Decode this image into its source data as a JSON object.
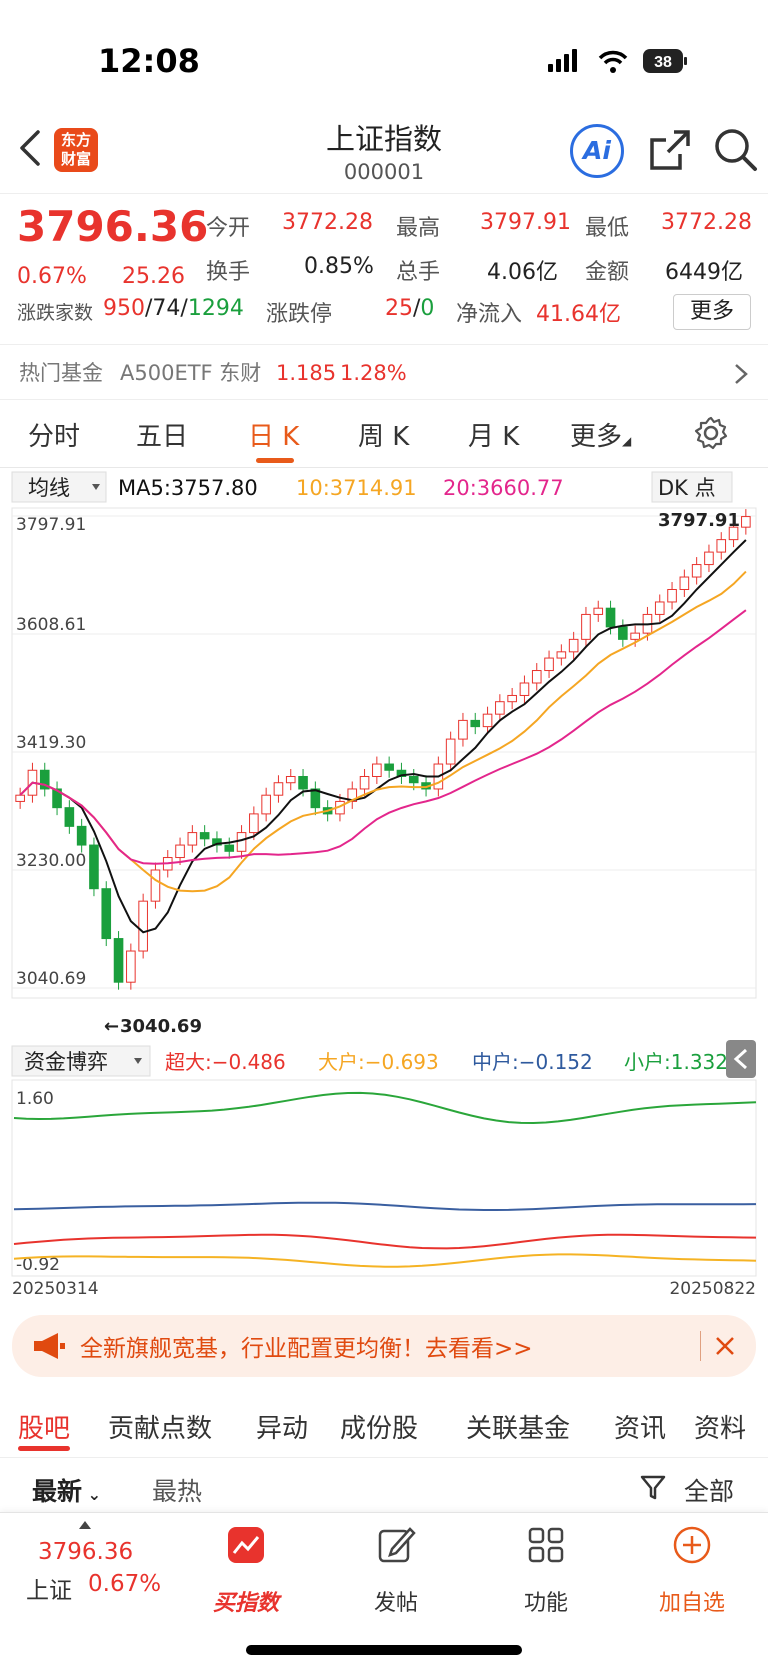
{
  "status": {
    "time": "12:08",
    "battery": "38"
  },
  "header": {
    "logo_line1": "东方",
    "logo_line2": "财富",
    "title": "上证指数",
    "code": "000001",
    "ai_label": "Ai"
  },
  "quote": {
    "price": "3796.36",
    "change_pct": "0.67%",
    "change": "25.26",
    "labels": {
      "open": "今开",
      "high": "最高",
      "low": "最低",
      "turnover": "换手",
      "volume": "总手",
      "amount": "金额",
      "breadth": "涨跌家数",
      "limit": "涨跌停",
      "netflow": "净流入"
    },
    "open": "3772.28",
    "high": "3797.91",
    "low": "3772.28",
    "turnover": "0.85%",
    "volume": "4.06亿",
    "amount": "6449亿",
    "up": "950",
    "flat": "74",
    "down": "1294",
    "limit_up": "25",
    "limit_down": "0",
    "netflow": "41.64亿",
    "more": "更多"
  },
  "hot_fund": {
    "label": "热门基金",
    "name": "A500ETF 东财",
    "price": "1.185",
    "pct": "1.28%"
  },
  "tabs": [
    "分时",
    "五日",
    "日 K",
    "周 K",
    "月 K",
    "更多"
  ],
  "active_tab": 2,
  "chart_header": {
    "ma_select": "均线",
    "ma5": "MA5:3757.80",
    "ma10": "10:3714.91",
    "ma20": "20:3660.77",
    "dk": "DK 点"
  },
  "colors": {
    "up": "#e8332d",
    "down": "#1a9f3d",
    "ma5": "#111111",
    "ma10": "#f5a623",
    "ma20": "#e3268c",
    "accent": "#e85a1a"
  },
  "chart_data": [
    {
      "type": "candlestick",
      "y_ticks": [
        "3797.91",
        "3608.61",
        "3419.30",
        "3230.00",
        "3040.69"
      ],
      "ylim": [
        3040.69,
        3797.91
      ],
      "max_label": "3797.91",
      "min_label": "3040.69",
      "close_path": [
        3350,
        3390,
        3360,
        3330,
        3300,
        3270,
        3200,
        3120,
        3050,
        3100,
        3180,
        3230,
        3250,
        3270,
        3290,
        3280,
        3270,
        3260,
        3290,
        3320,
        3350,
        3370,
        3380,
        3360,
        3330,
        3320,
        3340,
        3360,
        3380,
        3400,
        3390,
        3380,
        3370,
        3360,
        3400,
        3440,
        3470,
        3460,
        3480,
        3500,
        3510,
        3530,
        3550,
        3570,
        3580,
        3600,
        3640,
        3650,
        3620,
        3600,
        3610,
        3640,
        3660,
        3680,
        3700,
        3720,
        3740,
        3760,
        3780,
        3797
      ]
    },
    {
      "type": "line",
      "indicator": "资金博弈",
      "legend": {
        "super": "超大:−0.486",
        "large": "大户:−0.693",
        "mid": "中户:−0.152",
        "small": "小户:1.332"
      },
      "y_ticks": [
        "1.60",
        "-0.92"
      ],
      "x_start": "20250314",
      "x_end": "20250822"
    }
  ],
  "banner": {
    "text": "全新旗舰宽基，行业配置更均衡！去看看>>"
  },
  "bottom_tabs": [
    "股吧",
    "贡献点数",
    "异动",
    "成份股",
    "关联基金",
    "资讯",
    "资料"
  ],
  "sort": {
    "latest": "最新",
    "hot": "最热",
    "filter": "全部"
  },
  "footer": {
    "price": "3796.36",
    "name": "上证",
    "pct": "0.67%",
    "buy": "买指数",
    "post": "发帖",
    "func": "功能",
    "add": "加自选"
  }
}
